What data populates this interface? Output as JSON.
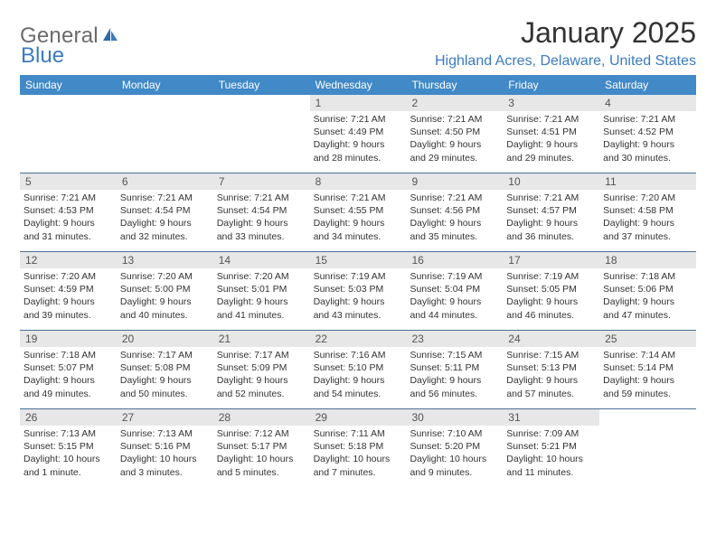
{
  "logo": {
    "part1": "General",
    "part2": "Blue"
  },
  "title": "January 2025",
  "location": "Highland Acres, Delaware, United States",
  "colors": {
    "header_bg": "#4189c7",
    "week_border": "#4a6f96",
    "daynum_bg": "#e7e7e7",
    "accent": "#3b7bbf"
  },
  "weekdays": [
    "Sunday",
    "Monday",
    "Tuesday",
    "Wednesday",
    "Thursday",
    "Friday",
    "Saturday"
  ],
  "rows": [
    [
      null,
      null,
      null,
      {
        "n": "1",
        "sr": "7:21 AM",
        "ss": "4:49 PM",
        "dl": "9 hours and 28 minutes."
      },
      {
        "n": "2",
        "sr": "7:21 AM",
        "ss": "4:50 PM",
        "dl": "9 hours and 29 minutes."
      },
      {
        "n": "3",
        "sr": "7:21 AM",
        "ss": "4:51 PM",
        "dl": "9 hours and 29 minutes."
      },
      {
        "n": "4",
        "sr": "7:21 AM",
        "ss": "4:52 PM",
        "dl": "9 hours and 30 minutes."
      }
    ],
    [
      {
        "n": "5",
        "sr": "7:21 AM",
        "ss": "4:53 PM",
        "dl": "9 hours and 31 minutes."
      },
      {
        "n": "6",
        "sr": "7:21 AM",
        "ss": "4:54 PM",
        "dl": "9 hours and 32 minutes."
      },
      {
        "n": "7",
        "sr": "7:21 AM",
        "ss": "4:54 PM",
        "dl": "9 hours and 33 minutes."
      },
      {
        "n": "8",
        "sr": "7:21 AM",
        "ss": "4:55 PM",
        "dl": "9 hours and 34 minutes."
      },
      {
        "n": "9",
        "sr": "7:21 AM",
        "ss": "4:56 PM",
        "dl": "9 hours and 35 minutes."
      },
      {
        "n": "10",
        "sr": "7:21 AM",
        "ss": "4:57 PM",
        "dl": "9 hours and 36 minutes."
      },
      {
        "n": "11",
        "sr": "7:20 AM",
        "ss": "4:58 PM",
        "dl": "9 hours and 37 minutes."
      }
    ],
    [
      {
        "n": "12",
        "sr": "7:20 AM",
        "ss": "4:59 PM",
        "dl": "9 hours and 39 minutes."
      },
      {
        "n": "13",
        "sr": "7:20 AM",
        "ss": "5:00 PM",
        "dl": "9 hours and 40 minutes."
      },
      {
        "n": "14",
        "sr": "7:20 AM",
        "ss": "5:01 PM",
        "dl": "9 hours and 41 minutes."
      },
      {
        "n": "15",
        "sr": "7:19 AM",
        "ss": "5:03 PM",
        "dl": "9 hours and 43 minutes."
      },
      {
        "n": "16",
        "sr": "7:19 AM",
        "ss": "5:04 PM",
        "dl": "9 hours and 44 minutes."
      },
      {
        "n": "17",
        "sr": "7:19 AM",
        "ss": "5:05 PM",
        "dl": "9 hours and 46 minutes."
      },
      {
        "n": "18",
        "sr": "7:18 AM",
        "ss": "5:06 PM",
        "dl": "9 hours and 47 minutes."
      }
    ],
    [
      {
        "n": "19",
        "sr": "7:18 AM",
        "ss": "5:07 PM",
        "dl": "9 hours and 49 minutes."
      },
      {
        "n": "20",
        "sr": "7:17 AM",
        "ss": "5:08 PM",
        "dl": "9 hours and 50 minutes."
      },
      {
        "n": "21",
        "sr": "7:17 AM",
        "ss": "5:09 PM",
        "dl": "9 hours and 52 minutes."
      },
      {
        "n": "22",
        "sr": "7:16 AM",
        "ss": "5:10 PM",
        "dl": "9 hours and 54 minutes."
      },
      {
        "n": "23",
        "sr": "7:15 AM",
        "ss": "5:11 PM",
        "dl": "9 hours and 56 minutes."
      },
      {
        "n": "24",
        "sr": "7:15 AM",
        "ss": "5:13 PM",
        "dl": "9 hours and 57 minutes."
      },
      {
        "n": "25",
        "sr": "7:14 AM",
        "ss": "5:14 PM",
        "dl": "9 hours and 59 minutes."
      }
    ],
    [
      {
        "n": "26",
        "sr": "7:13 AM",
        "ss": "5:15 PM",
        "dl": "10 hours and 1 minute."
      },
      {
        "n": "27",
        "sr": "7:13 AM",
        "ss": "5:16 PM",
        "dl": "10 hours and 3 minutes."
      },
      {
        "n": "28",
        "sr": "7:12 AM",
        "ss": "5:17 PM",
        "dl": "10 hours and 5 minutes."
      },
      {
        "n": "29",
        "sr": "7:11 AM",
        "ss": "5:18 PM",
        "dl": "10 hours and 7 minutes."
      },
      {
        "n": "30",
        "sr": "7:10 AM",
        "ss": "5:20 PM",
        "dl": "10 hours and 9 minutes."
      },
      {
        "n": "31",
        "sr": "7:09 AM",
        "ss": "5:21 PM",
        "dl": "10 hours and 11 minutes."
      },
      null
    ]
  ],
  "labels": {
    "sunrise": "Sunrise: ",
    "sunset": "Sunset: ",
    "daylight": "Daylight: "
  }
}
